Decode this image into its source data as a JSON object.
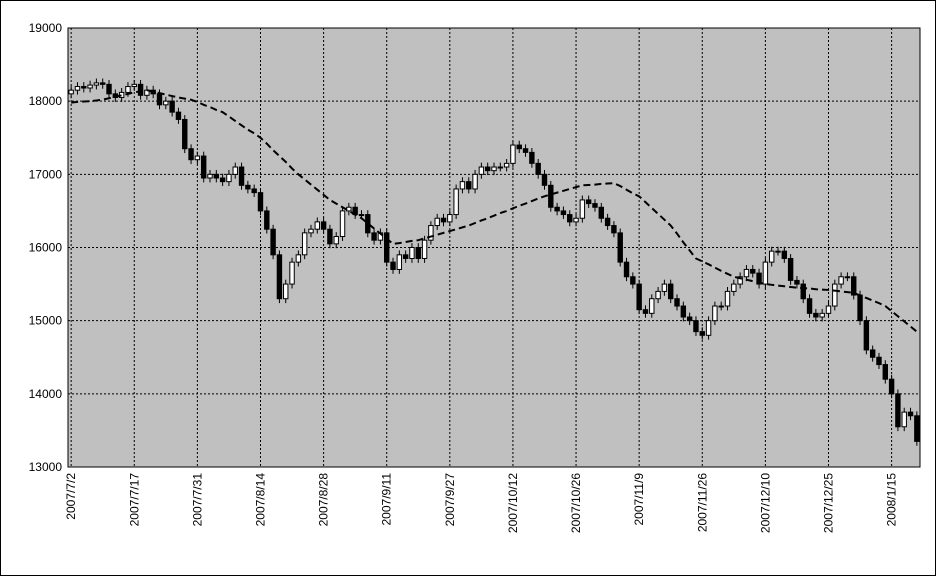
{
  "chart_data": {
    "type": "candlestick",
    "categories": [
      "2007/7/2",
      null,
      null,
      null,
      null,
      null,
      null,
      null,
      null,
      null,
      "2007/7/17",
      null,
      null,
      null,
      null,
      null,
      null,
      null,
      null,
      null,
      "2007/7/31",
      null,
      null,
      null,
      null,
      null,
      null,
      null,
      null,
      null,
      "2007/8/14",
      null,
      null,
      null,
      null,
      null,
      null,
      null,
      null,
      null,
      "2007/8/28",
      null,
      null,
      null,
      null,
      null,
      null,
      null,
      null,
      null,
      "2007/9/11",
      null,
      null,
      null,
      null,
      null,
      null,
      null,
      null,
      null,
      "2007/9/27",
      null,
      null,
      null,
      null,
      null,
      null,
      null,
      null,
      null,
      "2007/10/12",
      null,
      null,
      null,
      null,
      null,
      null,
      null,
      null,
      null,
      "2007/10/26",
      null,
      null,
      null,
      null,
      null,
      null,
      null,
      null,
      null,
      "2007/11/9",
      null,
      null,
      null,
      null,
      null,
      null,
      null,
      null,
      null,
      "2007/11/26",
      null,
      null,
      null,
      null,
      null,
      null,
      null,
      null,
      null,
      "2007/12/10",
      null,
      null,
      null,
      null,
      null,
      null,
      null,
      null,
      null,
      "2007/12/25",
      null,
      null,
      null,
      null,
      null,
      null,
      null,
      null,
      null,
      "2008/1/15",
      null,
      null,
      null,
      null
    ],
    "open": [
      18100,
      18150,
      18200,
      18180,
      18220,
      18250,
      18230,
      18100,
      18050,
      18120,
      18200,
      18230,
      18080,
      18150,
      18100,
      17950,
      18000,
      17850,
      17750,
      17350,
      17200,
      17250,
      16950,
      17000,
      16950,
      16900,
      17000,
      17100,
      16850,
      16800,
      16750,
      16500,
      16250,
      15900,
      15300,
      15500,
      15800,
      15900,
      16200,
      16250,
      16350,
      16250,
      16050,
      16150,
      16500,
      16550,
      16450,
      16450,
      16200,
      16100,
      16200,
      15800,
      15700,
      15900,
      15850,
      16000,
      15850,
      16100,
      16300,
      16400,
      16350,
      16450,
      16800,
      16900,
      16800,
      17000,
      17100,
      17050,
      17100,
      17100,
      17150,
      17400,
      17350,
      17300,
      17150,
      17000,
      16850,
      16550,
      16500,
      16450,
      16350,
      16400,
      16650,
      16600,
      16550,
      16400,
      16300,
      16200,
      15800,
      15600,
      15500,
      15150,
      15100,
      15300,
      15400,
      15500,
      15300,
      15200,
      15050,
      15000,
      14850,
      14800,
      15000,
      15200,
      15200,
      15400,
      15500,
      15600,
      15700,
      15650,
      15500,
      15800,
      15950,
      15950,
      15850,
      15550,
      15500,
      15300,
      15100,
      15050,
      15100,
      15200,
      15500,
      15600,
      15600,
      15350,
      15000,
      14600,
      14500,
      14400,
      14200,
      14000,
      13550,
      13750,
      13700
    ],
    "high": [
      18210,
      18260,
      18260,
      18280,
      18310,
      18310,
      18290,
      18160,
      18180,
      18260,
      18290,
      18290,
      18210,
      18210,
      18160,
      18060,
      18060,
      17910,
      17810,
      17410,
      17310,
      17310,
      17060,
      17060,
      17010,
      17060,
      17160,
      17160,
      16910,
      16860,
      16810,
      16560,
      16310,
      15960,
      15560,
      15860,
      15960,
      16260,
      16310,
      16410,
      16410,
      16310,
      16210,
      16560,
      16610,
      16610,
      16510,
      16510,
      16260,
      16260,
      16260,
      15860,
      15960,
      15960,
      16060,
      16060,
      16160,
      16360,
      16460,
      16460,
      16510,
      16860,
      16960,
      16960,
      17060,
      17160,
      17160,
      17160,
      17160,
      17210,
      17460,
      17460,
      17410,
      17360,
      17210,
      17060,
      16910,
      16610,
      16560,
      16510,
      16460,
      16710,
      16710,
      16660,
      16610,
      16460,
      16360,
      16260,
      15860,
      15660,
      15560,
      15210,
      15360,
      15460,
      15560,
      15560,
      15360,
      15260,
      15110,
      15060,
      14910,
      15060,
      15260,
      15260,
      15460,
      15560,
      15660,
      15760,
      15760,
      15710,
      15860,
      16010,
      16010,
      16010,
      15910,
      15610,
      15560,
      15360,
      15160,
      15160,
      15260,
      15560,
      15660,
      15660,
      15660,
      15410,
      15060,
      14660,
      14560,
      14460,
      14260,
      14060,
      13810,
      13810,
      13760
    ],
    "low": [
      18040,
      18090,
      18120,
      18120,
      18160,
      18170,
      18040,
      17990,
      17990,
      18060,
      18140,
      18020,
      18020,
      18040,
      17890,
      17890,
      17790,
      17690,
      17290,
      17140,
      17140,
      16890,
      16890,
      16890,
      16840,
      16840,
      16940,
      16790,
      16740,
      16690,
      16440,
      16190,
      15840,
      15240,
      15240,
      15440,
      15740,
      15840,
      16140,
      16190,
      16190,
      15990,
      15990,
      16090,
      16440,
      16390,
      16390,
      16140,
      16040,
      16040,
      15740,
      15640,
      15640,
      15790,
      15790,
      15790,
      15790,
      16040,
      16240,
      16290,
      16290,
      16390,
      16740,
      16740,
      16740,
      16940,
      16990,
      16990,
      17040,
      17040,
      17090,
      17290,
      17240,
      17090,
      16940,
      16790,
      16490,
      16440,
      16390,
      16290,
      16290,
      16340,
      16540,
      16490,
      16340,
      16240,
      16140,
      15740,
      15540,
      15440,
      15090,
      15040,
      15040,
      15240,
      15340,
      15240,
      15140,
      14990,
      14940,
      14790,
      14740,
      14740,
      14940,
      15140,
      15140,
      15340,
      15440,
      15540,
      15590,
      15440,
      15440,
      15740,
      15890,
      15790,
      15490,
      15440,
      15240,
      15040,
      14990,
      14990,
      15040,
      15140,
      15440,
      15540,
      15290,
      14940,
      14540,
      14440,
      14340,
      14140,
      13940,
      13490,
      13490,
      13640,
      13290
    ],
    "close": [
      18150,
      18200,
      18180,
      18220,
      18250,
      18230,
      18100,
      18050,
      18120,
      18200,
      18230,
      18080,
      18150,
      18100,
      17950,
      18000,
      17850,
      17750,
      17350,
      17200,
      17250,
      16950,
      17000,
      16950,
      16900,
      17000,
      17100,
      16850,
      16800,
      16750,
      16500,
      16250,
      15900,
      15300,
      15500,
      15800,
      15900,
      16200,
      16250,
      16350,
      16250,
      16050,
      16150,
      16500,
      16550,
      16450,
      16450,
      16200,
      16100,
      16200,
      15800,
      15700,
      15900,
      15850,
      16000,
      15850,
      16100,
      16300,
      16400,
      16350,
      16450,
      16800,
      16900,
      16800,
      17000,
      17100,
      17050,
      17100,
      17100,
      17150,
      17400,
      17350,
      17300,
      17150,
      17000,
      16850,
      16550,
      16500,
      16450,
      16350,
      16400,
      16650,
      16600,
      16550,
      16400,
      16300,
      16200,
      15800,
      15600,
      15500,
      15150,
      15100,
      15300,
      15400,
      15500,
      15300,
      15200,
      15050,
      15000,
      14850,
      14800,
      15000,
      15200,
      15200,
      15400,
      15500,
      15600,
      15700,
      15650,
      15500,
      15800,
      15950,
      15950,
      15850,
      15550,
      15500,
      15300,
      15100,
      15050,
      15100,
      15200,
      15500,
      15600,
      15600,
      15350,
      15000,
      14600,
      14500,
      14400,
      14200,
      14000,
      13550,
      13750,
      13700,
      13350
    ],
    "moving_average": [
      17980,
      17990,
      17995,
      18000,
      18010,
      18020,
      18040,
      18060,
      18080,
      18100,
      18120,
      18135,
      18150,
      18130,
      18110,
      18090,
      18070,
      18050,
      18035,
      18020,
      17990,
      17950,
      17920,
      17880,
      17850,
      17790,
      17730,
      17670,
      17610,
      17560,
      17500,
      17420,
      17330,
      17250,
      17170,
      17080,
      17000,
      16930,
      16860,
      16790,
      16720,
      16650,
      16600,
      16550,
      16500,
      16450,
      16400,
      16330,
      16260,
      16190,
      16120,
      16050,
      16060,
      16075,
      16090,
      16100,
      16125,
      16150,
      16175,
      16200,
      16225,
      16250,
      16275,
      16300,
      16335,
      16370,
      16400,
      16435,
      16470,
      16500,
      16535,
      16570,
      16600,
      16635,
      16670,
      16700,
      16725,
      16750,
      16775,
      16800,
      16825,
      16850,
      16855,
      16860,
      16870,
      16875,
      16880,
      16840,
      16790,
      16740,
      16700,
      16620,
      16540,
      16460,
      16380,
      16300,
      16190,
      16070,
      15960,
      15850,
      15810,
      15770,
      15725,
      15680,
      15640,
      15600,
      15580,
      15560,
      15540,
      15520,
      15500,
      15490,
      15480,
      15470,
      15460,
      15450,
      15445,
      15440,
      15430,
      15425,
      15420,
      15410,
      15400,
      15390,
      15380,
      15345,
      15310,
      15275,
      15240,
      15200,
      15130,
      15060,
      14990,
      14920,
      14850
    ],
    "ylim": [
      13000,
      19000
    ],
    "yticks": [
      13000,
      14000,
      15000,
      16000,
      17000,
      18000,
      19000
    ],
    "grid": true,
    "up_color": "#ffffff",
    "down_color": "#000000",
    "plot_background": "#c0c0c0",
    "line_color": "#000000"
  }
}
